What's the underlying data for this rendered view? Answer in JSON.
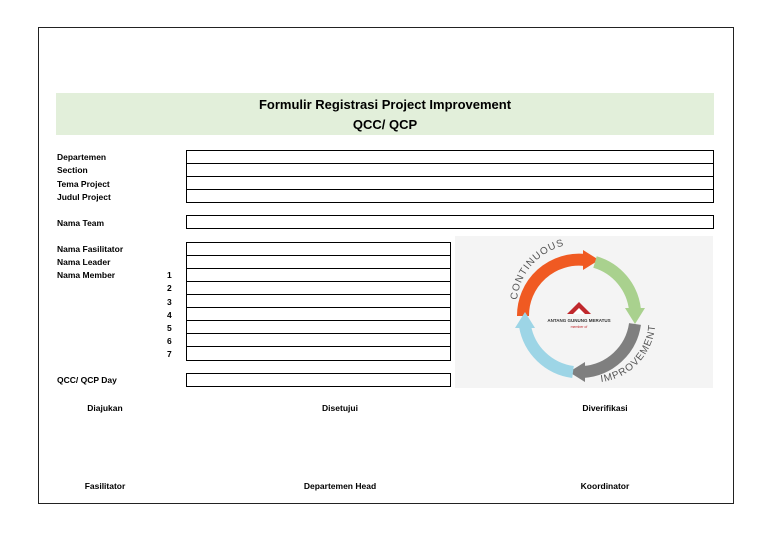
{
  "form": {
    "title_line1": "Formulir Registrasi Project Improvement",
    "title_line2": "QCC/ QCP",
    "labels": {
      "departemen": "Departemen",
      "section": "Section",
      "tema_project": "Tema Project",
      "judul_project": "Judul Project",
      "nama_team": "Nama Team",
      "nama_fasilitator": "Nama Fasilitator",
      "nama_leader": "Nama Leader",
      "nama_member": "Nama Member",
      "qcc_day": "QCC/ QCP Day"
    },
    "member_numbers": [
      "1",
      "2",
      "3",
      "4",
      "5",
      "6",
      "7"
    ]
  },
  "signatures": {
    "diajukan": "Diajukan",
    "disetujui": "Disetujui",
    "diverifikasi": "Diverifikasi",
    "fasilitator": "Fasilitator",
    "departemen_head": "Departemen Head",
    "koordinator": "Koordinator"
  },
  "logo": {
    "arc_top_text": "CONTINUOUS",
    "arc_bottom_text": "IMPROVEMENT",
    "company": "ANTANG GUNUNG MERATUS",
    "subtext": "member of",
    "colors": {
      "orange": "#f05a22",
      "green": "#a9d18e",
      "gray": "#7f7f7f",
      "blue": "#9dd5e6",
      "red": "#c0282d"
    }
  }
}
